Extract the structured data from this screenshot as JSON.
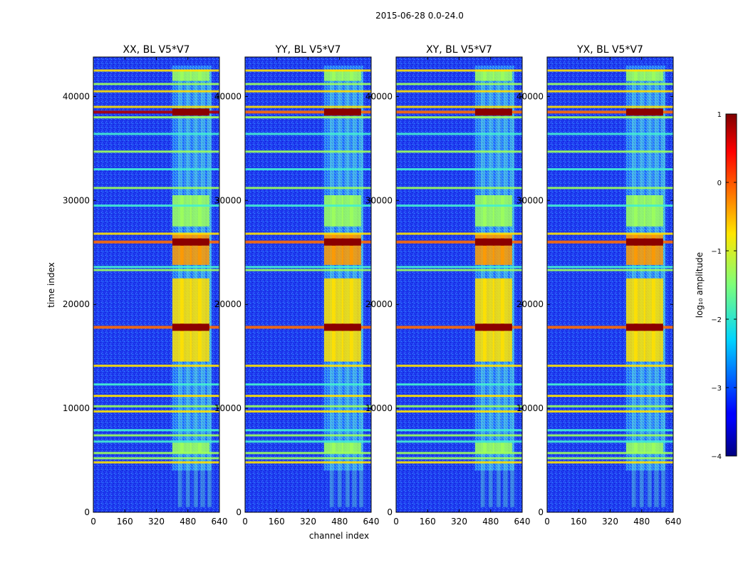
{
  "chart_data": {
    "type": "heatmap",
    "suptitle": "2015-06-28 0.0-24.0",
    "xlabel": "channel index",
    "ylabel": "time index",
    "xlim": [
      0,
      640
    ],
    "ylim": [
      0,
      43800
    ],
    "xticks": [
      "0",
      "160",
      "320",
      "480",
      "640"
    ],
    "xtick_values": [
      0,
      160,
      320,
      480,
      640
    ],
    "yticks": [
      "0",
      "10000",
      "20000",
      "30000",
      "40000"
    ],
    "ytick_values": [
      0,
      10000,
      20000,
      30000,
      40000
    ],
    "panels": [
      {
        "title": "XX, BL V5*V7",
        "strong_flare_rows": [
          38500,
          17800,
          26000
        ]
      },
      {
        "title": "YY, BL V5*V7",
        "strong_flare_rows": [
          38500,
          17800,
          26000
        ]
      },
      {
        "title": "XY, BL V5*V7",
        "strong_flare_rows": [
          38500,
          17800,
          26000
        ]
      },
      {
        "title": "YX, BL V5*V7",
        "strong_flare_rows": [
          38500,
          17800,
          26000
        ]
      }
    ],
    "rfi_rows": [
      {
        "t": 4800,
        "level": 0.5
      },
      {
        "t": 5200,
        "level": 0.4
      },
      {
        "t": 5700,
        "level": 0.4
      },
      {
        "t": 6800,
        "level": 0.3
      },
      {
        "t": 7400,
        "level": 0.4
      },
      {
        "t": 7900,
        "level": 0.3
      },
      {
        "t": 9700,
        "level": 0.6
      },
      {
        "t": 10200,
        "level": 0.4
      },
      {
        "t": 11200,
        "level": 0.5
      },
      {
        "t": 12300,
        "level": 0.3
      },
      {
        "t": 14100,
        "level": 0.6
      },
      {
        "t": 23300,
        "level": 0.4
      },
      {
        "t": 23600,
        "level": 0.3
      },
      {
        "t": 26800,
        "level": 0.5
      },
      {
        "t": 29500,
        "level": 0.3
      },
      {
        "t": 31200,
        "level": 0.4
      },
      {
        "t": 33000,
        "level": 0.3
      },
      {
        "t": 34700,
        "level": 0.4
      },
      {
        "t": 36400,
        "level": 0.3
      },
      {
        "t": 38000,
        "level": 0.4
      },
      {
        "t": 39000,
        "level": 0.5
      },
      {
        "t": 40500,
        "level": 0.6
      },
      {
        "t": 41200,
        "level": 0.4
      },
      {
        "t": 42500,
        "level": 0.5
      }
    ],
    "signal_band_channels": [
      400,
      600
    ],
    "colorbar": {
      "label": "log₁₀ amplitude",
      "range": [
        -4,
        1
      ],
      "ticks": [
        "1",
        "0",
        "−1",
        "−2",
        "−3",
        "−4"
      ],
      "tick_values": [
        1,
        0,
        -1,
        -2,
        -3,
        -4
      ],
      "colormap": "jet"
    }
  }
}
